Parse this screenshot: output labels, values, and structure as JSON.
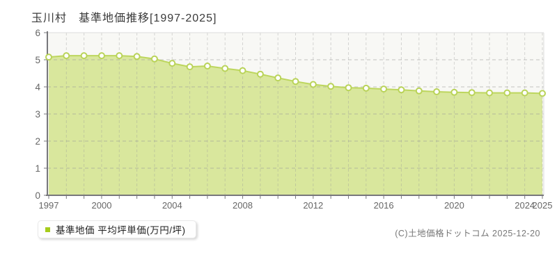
{
  "title": "玉川村　基準地価推移[1997-2025]",
  "legend": {
    "label": "基準地価 平均坪単価(万円/坪)"
  },
  "footer": {
    "copyright": "(C)土地価格ドットコム 2025-12-20"
  },
  "colors": {
    "area_fill": "#d9e79d",
    "line": "#bdd65e",
    "marker_fill": "#ffffff",
    "marker_stroke": "#b9d358",
    "legend_marker": "#a6cc1b",
    "grid": "#9a9a9a",
    "axis": "#77777b",
    "plot_border": "#dcdcdc",
    "plot_bg": "#f8f8f5",
    "tick_label": "#666666"
  },
  "chart_data": {
    "type": "area",
    "title": "玉川村 基準地価推移[1997-2025]",
    "series_name": "基準地価 平均坪単価(万円/坪)",
    "xlabel": "",
    "ylabel": "平均坪単価(万円/坪)",
    "x": [
      1997,
      1998,
      1999,
      2000,
      2001,
      2002,
      2003,
      2004,
      2005,
      2006,
      2007,
      2008,
      2009,
      2010,
      2011,
      2012,
      2013,
      2014,
      2015,
      2016,
      2017,
      2018,
      2019,
      2020,
      2021,
      2022,
      2023,
      2024,
      2025
    ],
    "values": [
      5.1,
      5.15,
      5.15,
      5.15,
      5.15,
      5.12,
      5.03,
      4.87,
      4.74,
      4.77,
      4.68,
      4.6,
      4.47,
      4.33,
      4.2,
      4.09,
      4.02,
      3.97,
      3.95,
      3.92,
      3.89,
      3.85,
      3.82,
      3.8,
      3.79,
      3.78,
      3.78,
      3.78,
      3.76
    ],
    "ylim": [
      0,
      6
    ],
    "yticks": [
      0,
      1,
      2,
      3,
      4,
      5,
      6
    ],
    "xtick_labels": [
      "1997",
      "2000",
      "2004",
      "2008",
      "2012",
      "2016",
      "2020",
      "2024",
      "2025"
    ],
    "grid": "dashed",
    "legend_position": "bottom-left"
  }
}
